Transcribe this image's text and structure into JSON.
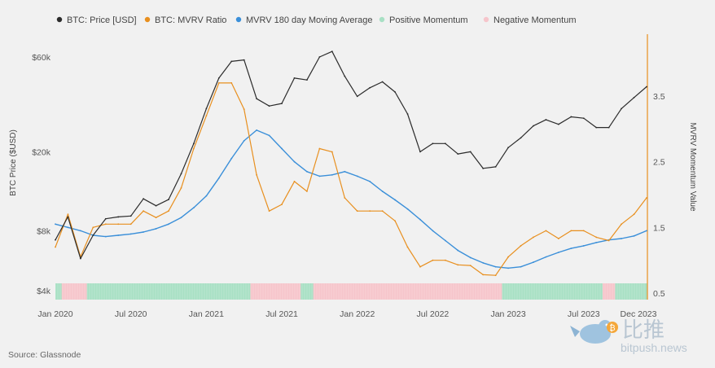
{
  "colors": {
    "price": "#2b2b2b",
    "mvrv": "#e88f1e",
    "ma": "#3a8fd9",
    "positive": "#a8e0c4",
    "negative": "#f6c5cb",
    "right_axis": "#e88f1e"
  },
  "legend": [
    {
      "label": "BTC: Price [USD]",
      "color": "#2b2b2b"
    },
    {
      "label": "BTC: MVRV Ratio",
      "color": "#e88f1e"
    },
    {
      "label": "MVRV 180 day Moving Average",
      "color": "#3a8fd9"
    },
    {
      "label": "Positive Momentum",
      "color": "#a8e0c4"
    },
    {
      "label": "Negative Momentum",
      "color": "#f6c5cb"
    }
  ],
  "source": "Source: Glassnode",
  "watermark": {
    "cn": "比推",
    "en": "bitpush.news",
    "icon": "bird-bitcoin-logo"
  },
  "chart_data": {
    "type": "line",
    "x_ticks": [
      "Jan 2020",
      "Jul 2020",
      "Jan 2021",
      "Jul 2021",
      "Jan 2022",
      "Jul 2022",
      "Jan 2023",
      "Jul 2023",
      "Dec 2023"
    ],
    "xlim": [
      "2020-01",
      "2023-12"
    ],
    "left_axis": {
      "label": "BTC Price ($USD)",
      "ticks": [
        "$4k",
        "$8k",
        "$20k",
        "$60k"
      ],
      "tick_values": [
        4000,
        8000,
        20000,
        60000
      ],
      "scale": "log"
    },
    "right_axis": {
      "label": "MVRV Momentum Value",
      "ticks": [
        "0.5",
        "1.5",
        "2.5",
        "3.5"
      ],
      "tick_values": [
        0.5,
        1.5,
        2.5,
        3.5
      ]
    },
    "x": [
      "2020-01",
      "2020-02",
      "2020-03",
      "2020-04",
      "2020-05",
      "2020-06",
      "2020-07",
      "2020-08",
      "2020-09",
      "2020-10",
      "2020-11",
      "2020-12",
      "2021-01",
      "2021-02",
      "2021-03",
      "2021-04",
      "2021-05",
      "2021-06",
      "2021-07",
      "2021-08",
      "2021-09",
      "2021-10",
      "2021-11",
      "2021-12",
      "2022-01",
      "2022-02",
      "2022-03",
      "2022-04",
      "2022-05",
      "2022-06",
      "2022-07",
      "2022-08",
      "2022-09",
      "2022-10",
      "2022-11",
      "2022-12",
      "2023-01",
      "2023-02",
      "2023-03",
      "2023-04",
      "2023-05",
      "2023-06",
      "2023-07",
      "2023-08",
      "2023-09",
      "2023-10",
      "2023-11",
      "2023-12"
    ],
    "series": [
      {
        "name": "BTC: Price [USD]",
        "axis": "left",
        "values": [
          7200,
          9400,
          5800,
          7600,
          9200,
          9400,
          9500,
          11600,
          10700,
          11500,
          15500,
          22000,
          33000,
          47000,
          57000,
          58000,
          37000,
          34000,
          35000,
          47000,
          46000,
          60000,
          64000,
          48000,
          38000,
          42000,
          45000,
          40000,
          31000,
          20000,
          22000,
          22000,
          19500,
          20000,
          16500,
          16800,
          21000,
          23500,
          27000,
          29000,
          27500,
          30000,
          29500,
          26500,
          26500,
          33000,
          37500,
          42500
        ]
      },
      {
        "name": "BTC: MVRV Ratio",
        "axis": "right",
        "values": [
          1.2,
          1.7,
          1.05,
          1.5,
          1.55,
          1.55,
          1.55,
          1.75,
          1.65,
          1.75,
          2.1,
          2.7,
          3.2,
          3.7,
          3.7,
          3.3,
          2.3,
          1.75,
          1.85,
          2.2,
          2.05,
          2.7,
          2.65,
          1.95,
          1.75,
          1.75,
          1.75,
          1.6,
          1.2,
          0.9,
          1.0,
          1.0,
          0.93,
          0.92,
          0.78,
          0.77,
          1.05,
          1.22,
          1.35,
          1.45,
          1.33,
          1.45,
          1.45,
          1.35,
          1.3,
          1.55,
          1.7,
          1.95
        ]
      },
      {
        "name": "MVRV 180 day Moving Average",
        "axis": "right",
        "values": [
          1.55,
          1.5,
          1.45,
          1.38,
          1.36,
          1.38,
          1.4,
          1.43,
          1.48,
          1.55,
          1.65,
          1.8,
          1.98,
          2.25,
          2.55,
          2.82,
          2.98,
          2.9,
          2.7,
          2.5,
          2.35,
          2.28,
          2.3,
          2.35,
          2.28,
          2.2,
          2.05,
          1.92,
          1.78,
          1.62,
          1.45,
          1.3,
          1.15,
          1.04,
          0.96,
          0.9,
          0.88,
          0.9,
          0.97,
          1.05,
          1.12,
          1.18,
          1.22,
          1.27,
          1.31,
          1.33,
          1.37,
          1.45
        ]
      },
      {
        "name": "Momentum",
        "type": "band",
        "states": [
          "positive",
          "negative",
          "negative",
          "positive",
          "positive",
          "positive",
          "positive",
          "positive",
          "positive",
          "positive",
          "positive",
          "positive",
          "positive",
          "positive",
          "positive",
          "positive",
          "negative",
          "negative",
          "negative",
          "negative",
          "positive",
          "negative",
          "negative",
          "negative",
          "negative",
          "negative",
          "negative",
          "negative",
          "negative",
          "negative",
          "negative",
          "negative",
          "negative",
          "negative",
          "negative",
          "negative",
          "positive",
          "positive",
          "positive",
          "positive",
          "positive",
          "positive",
          "positive",
          "positive",
          "negative",
          "positive",
          "positive",
          "positive"
        ]
      }
    ]
  }
}
